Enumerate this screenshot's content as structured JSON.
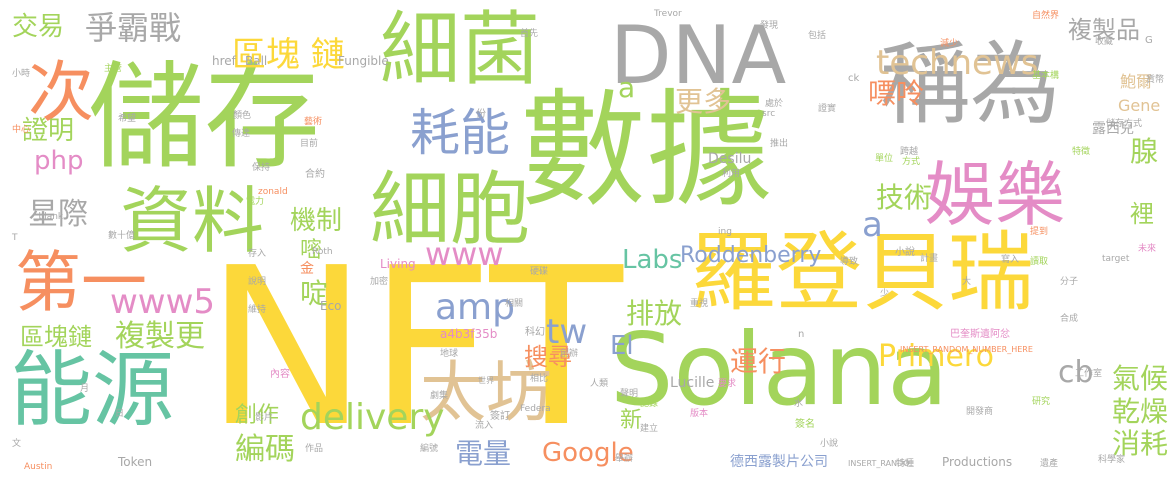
{
  "palette": {
    "green": "#a3d45b",
    "gray": "#a8a8a8",
    "orange": "#f68f60",
    "pink": "#e48cc6",
    "yellow": "#fcd83a",
    "tan": "#e1c394",
    "blue": "#8aa0cf",
    "teal": "#66c4a3"
  },
  "words": [
    {
      "text": "數據",
      "color": "green",
      "rot": 0
    },
    {
      "text": "NFT",
      "color": "yellow",
      "rot": 0
    },
    {
      "text": "儲存",
      "color": "green",
      "rot": 0
    },
    {
      "text": "細菌",
      "color": "green",
      "rot": 0
    },
    {
      "text": "稱為",
      "color": "gray",
      "rot": 0
    },
    {
      "text": "羅登貝瑞",
      "color": "yellow",
      "rot": 0
    },
    {
      "text": "Solana",
      "color": "green",
      "rot": 0
    },
    {
      "text": "能源",
      "color": "teal",
      "rot": 0
    },
    {
      "text": "細胞",
      "color": "green",
      "rot": 0
    },
    {
      "text": "DNA",
      "color": "gray",
      "rot": 0
    },
    {
      "text": "資料",
      "color": "green",
      "rot": 0
    },
    {
      "text": "第一",
      "color": "orange",
      "rot": 0
    },
    {
      "text": "娛樂",
      "color": "pink",
      "rot": 0
    },
    {
      "text": "太坊",
      "color": "tan",
      "rot": 0
    },
    {
      "text": "次",
      "color": "orange",
      "rot": 0
    },
    {
      "text": "耗能",
      "color": "blue",
      "rot": 0
    },
    {
      "text": "區塊 鏈",
      "color": "yellow",
      "rot": 0
    },
    {
      "text": "technews",
      "color": "tan",
      "rot": 0
    },
    {
      "text": "爭霸戰",
      "color": "gray",
      "rot": 0
    },
    {
      "text": "交易",
      "color": "green",
      "rot": 0
    },
    {
      "text": "複製品",
      "color": "gray",
      "rot": 0
    },
    {
      "text": "嘌呤",
      "color": "orange",
      "rot": 0
    },
    {
      "text": "更多",
      "color": "tan",
      "rot": 0
    },
    {
      "text": "a",
      "color": "green",
      "rot": 0
    },
    {
      "text": "證明",
      "color": "green",
      "rot": 0
    },
    {
      "text": "php",
      "color": "pink",
      "rot": 0
    },
    {
      "text": "星際",
      "color": "gray",
      "rot": 0
    },
    {
      "text": "機制",
      "color": "green",
      "rot": 0
    },
    {
      "text": "技術",
      "color": "green",
      "rot": 0
    },
    {
      "text": "a",
      "color": "blue",
      "rot": 0
    },
    {
      "text": "嘧",
      "color": "green",
      "rot": 0
    },
    {
      "text": "裡",
      "color": "green",
      "rot": 0
    },
    {
      "text": "腺",
      "color": "green",
      "rot": 0
    },
    {
      "text": "www",
      "color": "pink",
      "rot": 0
    },
    {
      "text": "Roddenberry",
      "color": "blue",
      "rot": 0
    },
    {
      "text": "Labs",
      "color": "teal",
      "rot": 0
    },
    {
      "text": "www5",
      "color": "pink",
      "rot": 0
    },
    {
      "text": "啶",
      "color": "green",
      "rot": 0
    },
    {
      "text": "amp",
      "color": "blue",
      "rot": 0
    },
    {
      "text": "tw",
      "color": "blue",
      "rot": 0
    },
    {
      "text": "排放",
      "color": "green",
      "rot": 0
    },
    {
      "text": "El",
      "color": "blue",
      "rot": 0
    },
    {
      "text": "區塊鏈",
      "color": "green",
      "rot": 0
    },
    {
      "text": "複製更",
      "color": "green",
      "rot": 0
    },
    {
      "text": "搜尋",
      "color": "orange",
      "rot": 0
    },
    {
      "text": "運行",
      "color": "orange",
      "rot": 0
    },
    {
      "text": "Primero",
      "color": "yellow",
      "rot": 0
    },
    {
      "text": "cb",
      "color": "gray",
      "rot": 0
    },
    {
      "text": "氣候",
      "color": "green",
      "rot": 0
    },
    {
      "text": "乾燥",
      "color": "green",
      "rot": 0
    },
    {
      "text": "消耗",
      "color": "green",
      "rot": 0
    },
    {
      "text": "delivery",
      "color": "green",
      "rot": 0
    },
    {
      "text": "編碼",
      "color": "green",
      "rot": 0
    },
    {
      "text": "創作",
      "color": "green",
      "rot": 0
    },
    {
      "text": "電量",
      "color": "blue",
      "rot": 0
    },
    {
      "text": "Google",
      "color": "orange",
      "rot": 0
    },
    {
      "text": "新",
      "color": "green",
      "rot": 0
    },
    {
      "text": "Lucille",
      "color": "gray",
      "rot": 0
    },
    {
      "text": "Gene",
      "color": "tan",
      "rot": 0
    },
    {
      "text": "鮑爾",
      "color": "tan",
      "rot": 0
    },
    {
      "text": "露西兒",
      "color": "gray",
      "rot": 0
    },
    {
      "text": "Ball",
      "color": "gray",
      "rot": 0
    },
    {
      "text": "href",
      "color": "gray",
      "rot": 0
    },
    {
      "text": "Fungible",
      "color": "gray",
      "rot": 0
    },
    {
      "text": "Desilu",
      "color": "gray",
      "rot": 0
    },
    {
      "text": "德西露製片公司",
      "color": "blue",
      "rot": 0
    },
    {
      "text": "Productions",
      "color": "gray",
      "rot": 0
    },
    {
      "text": "a4b3f35b",
      "color": "pink",
      "rot": 0
    },
    {
      "text": "Token",
      "color": "gray",
      "rot": 0
    },
    {
      "text": "Living",
      "color": "pink",
      "rot": 0
    },
    {
      "text": "Eco",
      "color": "gray",
      "rot": 0
    },
    {
      "text": "金",
      "color": "orange",
      "rot": 0
    },
    {
      "text": "INSERT_RANDOM_NUMBER_HERE",
      "color": "orange",
      "rot": 0
    },
    {
      "text": "INSERT_RANDO",
      "color": "gray",
      "rot": 0
    },
    {
      "text": "_blank",
      "color": "gray",
      "rot": 0
    },
    {
      "text": "Trevor",
      "color": "gray",
      "rot": 0
    },
    {
      "text": "Roth",
      "color": "gray",
      "rot": 0
    },
    {
      "text": "Austin",
      "color": "orange",
      "rot": 0
    },
    {
      "text": "巴奎斯遺阿忿",
      "color": "pink",
      "rot": 0
    },
    {
      "text": "合約",
      "color": "gray",
      "rot": 0
    },
    {
      "text": "簽訂",
      "color": "gray",
      "rot": 0
    },
    {
      "text": "簽名",
      "color": "green",
      "rot": 0
    },
    {
      "text": "內容",
      "color": "pink",
      "rot": 0
    },
    {
      "text": "小說",
      "color": "gray",
      "rot": 0
    },
    {
      "text": "科幻",
      "color": "gray",
      "rot": 0
    },
    {
      "text": "世界",
      "color": "gray",
      "rot": 0
    },
    {
      "text": "特徵",
      "color": "green",
      "rot": 0
    },
    {
      "text": "工作室",
      "color": "gray",
      "rot": 0
    },
    {
      "text": "研究",
      "color": "green",
      "rot": 0
    },
    {
      "text": "科學家",
      "color": "gray",
      "rot": 0
    },
    {
      "text": "開發商",
      "color": "gray",
      "rot": 0
    },
    {
      "text": "特種",
      "color": "gray",
      "rot": 0
    },
    {
      "text": "小時",
      "color": "gray",
      "rot": 0
    },
    {
      "text": "主管",
      "color": "green",
      "rot": 0
    },
    {
      "text": "中心",
      "color": "orange",
      "rot": 0
    },
    {
      "text": "基本構",
      "color": "green",
      "rot": 0
    },
    {
      "text": "自然界",
      "color": "orange",
      "rot": 0
    },
    {
      "text": "跨越",
      "color": "gray",
      "rot": 0
    },
    {
      "text": "單位",
      "color": "green",
      "rot": 0
    },
    {
      "text": "方式",
      "color": "green",
      "rot": 0
    },
    {
      "text": "利用",
      "color": "gray",
      "rot": 0
    },
    {
      "text": "處於",
      "color": "gray",
      "rot": 0
    },
    {
      "text": "減少",
      "color": "orange",
      "rot": 0
    },
    {
      "text": "發現",
      "color": "gray",
      "rot": 0
    },
    {
      "text": "證實",
      "color": "gray",
      "rot": 0
    },
    {
      "text": "相比",
      "color": "gray",
      "rot": 0
    },
    {
      "text": "地球",
      "color": "gray",
      "rot": 0
    },
    {
      "text": "包括",
      "color": "gray",
      "rot": 0
    },
    {
      "text": "傳達",
      "color": "gray",
      "rot": 0
    },
    {
      "text": "首先",
      "color": "gray",
      "rot": 0
    },
    {
      "text": "顏色",
      "color": "gray",
      "rot": 0
    },
    {
      "text": "藝術",
      "color": "orange",
      "rot": 0
    },
    {
      "text": "保持",
      "color": "gray",
      "rot": 0
    },
    {
      "text": "重視",
      "color": "gray",
      "rot": 0
    },
    {
      "text": "要求",
      "color": "pink",
      "rot": 0
    },
    {
      "text": "計畫",
      "color": "gray",
      "rot": 0
    },
    {
      "text": "未來",
      "color": "pink",
      "rot": 0
    },
    {
      "text": "導致",
      "color": "gray",
      "rot": 0
    },
    {
      "text": "提到",
      "color": "orange",
      "rot": 0
    },
    {
      "text": "寫入",
      "color": "gray",
      "rot": 0
    },
    {
      "text": "讀取",
      "color": "green",
      "rot": 0
    },
    {
      "text": "小說",
      "color": "gray",
      "rot": 0
    },
    {
      "text": "創辦",
      "color": "gray",
      "rot": 0
    },
    {
      "text": "記錄",
      "color": "green",
      "rot": 0
    },
    {
      "text": "人類",
      "color": "gray",
      "rot": 0
    },
    {
      "text": "編號",
      "color": "gray",
      "rot": 0
    },
    {
      "text": "建立",
      "color": "gray",
      "rot": 0
    },
    {
      "text": "版本",
      "color": "pink",
      "rot": 0
    },
    {
      "text": "作品",
      "color": "gray",
      "rot": 0
    },
    {
      "text": "分子",
      "color": "gray",
      "rot": 0
    },
    {
      "text": "合成",
      "color": "gray",
      "rot": 0
    },
    {
      "text": "儲存方式",
      "color": "gray",
      "rot": 0
    },
    {
      "text": "目前",
      "color": "gray",
      "rot": 0
    },
    {
      "text": "存入",
      "color": "gray",
      "rot": 0
    },
    {
      "text": "數十億",
      "color": "gray",
      "rot": 0
    },
    {
      "text": "希望",
      "color": "gray",
      "rot": 0
    },
    {
      "text": "影片",
      "color": "gray",
      "rot": 0
    },
    {
      "text": "相關",
      "color": "gray",
      "rot": 0
    },
    {
      "text": "劇集",
      "color": "gray",
      "rot": 0
    },
    {
      "text": "流入",
      "color": "gray",
      "rot": 0
    },
    {
      "text": "聲明",
      "color": "gray",
      "rot": 0
    },
    {
      "text": "舉辦",
      "color": "gray",
      "rot": 0
    },
    {
      "text": "說明",
      "color": "gray",
      "rot": 0
    },
    {
      "text": "推出",
      "color": "gray",
      "rot": 0
    },
    {
      "text": "遺產",
      "color": "gray",
      "rot": 0
    },
    {
      "text": "收藏",
      "color": "gray",
      "rot": 0
    },
    {
      "text": "硬碟",
      "color": "gray",
      "rot": 0
    },
    {
      "text": "電力",
      "color": "green",
      "rot": 0
    },
    {
      "text": "加密",
      "color": "gray",
      "rot": 0
    },
    {
      "text": "貨幣",
      "color": "gray",
      "rot": 0
    },
    {
      "text": "維持",
      "color": "gray",
      "rot": 0
    },
    {
      "text": "Federa",
      "color": "gray",
      "rot": 0
    },
    {
      "text": "zonald",
      "color": "orange",
      "rot": 0
    },
    {
      "text": "target",
      "color": "gray",
      "rot": 0
    },
    {
      "text": "src",
      "color": "gray",
      "rot": 0
    },
    {
      "text": "ck",
      "color": "gray",
      "rot": 0
    },
    {
      "text": "n",
      "color": "gray",
      "rot": 0
    },
    {
      "text": "G",
      "color": "gray",
      "rot": 0
    },
    {
      "text": "ing",
      "color": "gray",
      "rot": 0
    },
    {
      "text": "份",
      "color": "gray",
      "rot": 0
    },
    {
      "text": "少",
      "color": "gray",
      "rot": 0
    },
    {
      "text": "水",
      "color": "gray",
      "rot": 0
    },
    {
      "text": "大",
      "color": "gray",
      "rot": 0
    },
    {
      "text": "月",
      "color": "gray",
      "rot": 0
    },
    {
      "text": "日",
      "color": "gray",
      "rot": 0
    },
    {
      "text": "文",
      "color": "gray",
      "rot": 0
    },
    {
      "text": "T",
      "color": "gray",
      "rot": 0
    },
    {
      "text": "C",
      "color": "gray",
      "rot": 0
    }
  ]
}
